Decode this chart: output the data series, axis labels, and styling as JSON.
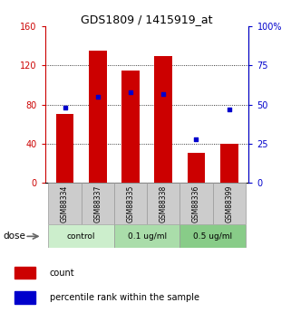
{
  "title": "GDS1809 / 1415919_at",
  "samples": [
    "GSM88334",
    "GSM88337",
    "GSM88335",
    "GSM88338",
    "GSM88336",
    "GSM88399"
  ],
  "bar_values": [
    70,
    135,
    115,
    130,
    30,
    40
  ],
  "percentile_values": [
    48,
    55,
    58,
    57,
    28,
    47
  ],
  "bar_color": "#cc0000",
  "dot_color": "#0000cc",
  "ylim_left": [
    0,
    160
  ],
  "ylim_right": [
    0,
    100
  ],
  "yticks_left": [
    0,
    40,
    80,
    120,
    160
  ],
  "ytick_labels_left": [
    "0",
    "40",
    "80",
    "120",
    "160"
  ],
  "yticks_right": [
    0,
    25,
    50,
    75,
    100
  ],
  "ytick_labels_right": [
    "0",
    "25",
    "50",
    "75",
    "100%"
  ],
  "groups": [
    {
      "label": "control",
      "indices": [
        0,
        1
      ],
      "color": "#cceecc"
    },
    {
      "label": "0.1 ug/ml",
      "indices": [
        2,
        3
      ],
      "color": "#aaddaa"
    },
    {
      "label": "0.5 ug/ml",
      "indices": [
        4,
        5
      ],
      "color": "#88cc88"
    }
  ],
  "dose_label": "dose",
  "legend_count": "count",
  "legend_percentile": "percentile rank within the sample",
  "grid_yticks": [
    40,
    80,
    120
  ],
  "bar_width": 0.55,
  "background_color": "#ffffff",
  "plot_bg_color": "#ffffff",
  "sample_box_color": "#cccccc",
  "sample_box_edge": "#999999",
  "group_box_edge": "#999999"
}
